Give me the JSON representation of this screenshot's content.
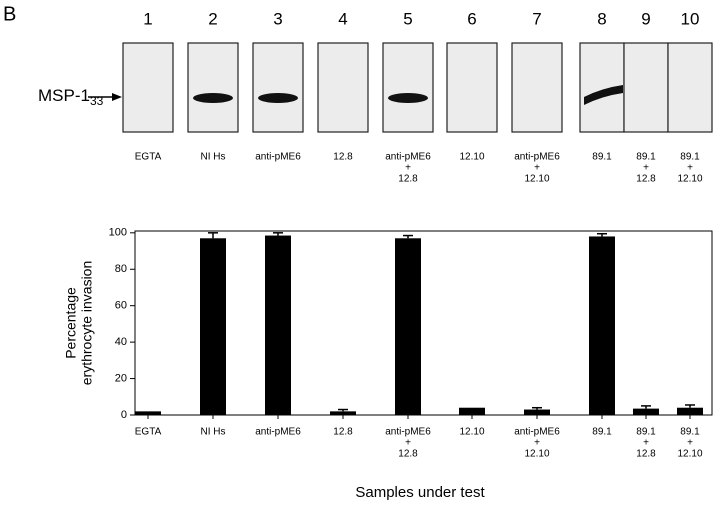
{
  "panel_label": "B",
  "blot": {
    "marker": {
      "text": "MSP-1",
      "subscript": "33"
    },
    "lanes": [
      {
        "number": "1",
        "caption": [
          "EGTA"
        ]
      },
      {
        "number": "2",
        "caption": [
          "NI Hs"
        ]
      },
      {
        "number": "3",
        "caption": [
          "anti-pME6"
        ]
      },
      {
        "number": "4",
        "caption": [
          "12.8"
        ]
      },
      {
        "number": "5",
        "caption": [
          "anti-pME6",
          "+",
          "12.8"
        ]
      },
      {
        "number": "6",
        "caption": [
          "12.10"
        ]
      },
      {
        "number": "7",
        "caption": [
          "anti-pME6",
          "+",
          "12.10"
        ]
      },
      {
        "number": "8",
        "caption": [
          "89.1"
        ]
      },
      {
        "number": "9",
        "caption": [
          "89.1",
          "+",
          "12.8"
        ]
      },
      {
        "number": "10",
        "caption": [
          "89.1",
          "+",
          "12.10"
        ]
      }
    ]
  },
  "chart_data": {
    "type": "bar",
    "ylabel": [
      "Percentage",
      "erythrocyte invasion"
    ],
    "xlabel": "Samples under test",
    "categories": [
      [
        "EGTA"
      ],
      [
        "NI Hs"
      ],
      [
        "anti-pME6"
      ],
      [
        "12.8"
      ],
      [
        "anti-pME6",
        "+",
        "12.8"
      ],
      [
        "12.10"
      ],
      [
        "anti-pME6",
        "+",
        "12.10"
      ],
      [
        "89.1"
      ],
      [
        "89.1",
        "+",
        "12.8"
      ],
      [
        "89.1",
        "+",
        "12.10"
      ]
    ],
    "values": [
      2,
      97,
      98.5,
      2,
      97,
      4,
      3,
      98,
      3.5,
      4
    ],
    "errors": [
      0,
      3,
      1.5,
      1,
      1.5,
      0,
      1,
      1.5,
      1.5,
      1.5
    ],
    "color": "#000000",
    "ylim": [
      0,
      101
    ],
    "yticks": [
      0,
      20,
      40,
      60,
      80,
      100
    ]
  }
}
